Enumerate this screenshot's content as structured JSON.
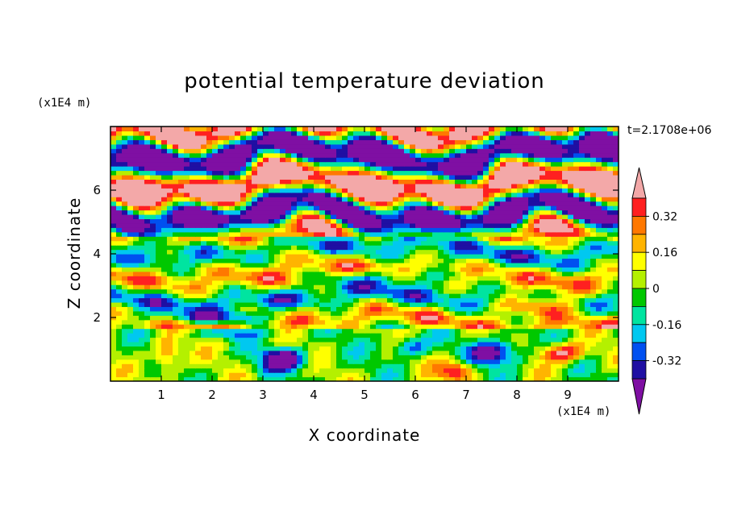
{
  "chart_data": {
    "type": "heatmap",
    "title": "potential temperature deviation",
    "xlabel": "X coordinate",
    "ylabel": "Z coordinate",
    "x_unit": "(x1E4 m)",
    "y_unit": "(x1E4 m)",
    "time_label": "t=2.1708e+06",
    "xlim": [
      0,
      10
    ],
    "ylim": [
      0,
      8
    ],
    "x_ticks": [
      "1",
      "2",
      "3",
      "4",
      "5",
      "6",
      "7",
      "8",
      "9"
    ],
    "y_ticks": [
      "2",
      "4",
      "6"
    ],
    "colorbar": {
      "levels": [
        -0.4,
        -0.32,
        -0.24,
        -0.16,
        -0.08,
        0,
        0.08,
        0.16,
        0.24,
        0.32,
        0.4
      ],
      "labels": [
        "0.32",
        "0.16",
        "0",
        "-0.16",
        "-0.32"
      ],
      "colors": [
        "#7f0fa3",
        "#1f0fa3",
        "#0050f0",
        "#00c8f0",
        "#00e4a0",
        "#00c800",
        "#b4f000",
        "#ffff00",
        "#ffb400",
        "#ff7800",
        "#ff2020",
        "#f3a8a8"
      ]
    },
    "regions": [
      {
        "z_range": [
          0,
          1.7
        ],
        "description": "turbulent eddies mixed around zero with local extremes near -0.4 and +0.4"
      },
      {
        "z_range": [
          1.7,
          4.6
        ],
        "description": "layered bands of weak positive and negative deviation"
      },
      {
        "z_range": [
          4.6,
          8
        ],
        "description": "alternating strong positive (>0.4) and strong negative (<-0.4) layers"
      }
    ]
  }
}
